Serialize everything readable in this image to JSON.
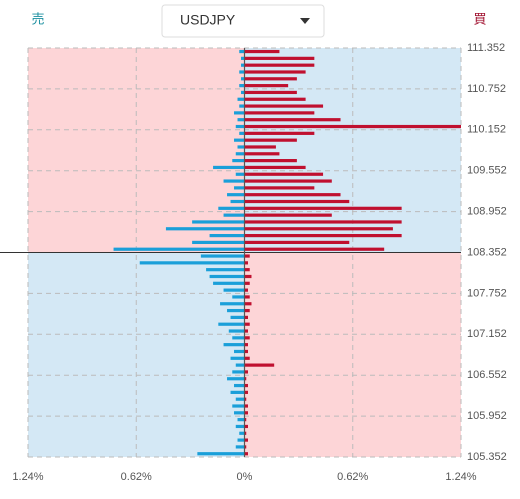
{
  "header": {
    "sell_label": "売",
    "buy_label": "買",
    "symbol": "USDJPY"
  },
  "chart_data": {
    "type": "orderbook",
    "current_price": 108.352,
    "prices": [
      105.4,
      105.5,
      105.6,
      105.7,
      105.8,
      105.9,
      106.0,
      106.1,
      106.2,
      106.3,
      106.4,
      106.5,
      106.6,
      106.7,
      106.8,
      106.9,
      107.0,
      107.1,
      107.2,
      107.3,
      107.4,
      107.5,
      107.6,
      107.7,
      107.8,
      107.9,
      108.0,
      108.1,
      108.2,
      108.3,
      108.4,
      108.5,
      108.6,
      108.7,
      108.8,
      108.9,
      109.0,
      109.1,
      109.2,
      109.3,
      109.4,
      109.5,
      109.6,
      109.7,
      109.8,
      109.9,
      110.0,
      110.1,
      110.2,
      110.3,
      110.4,
      110.5,
      110.6,
      110.7,
      110.8,
      110.9,
      111.0,
      111.1,
      111.2,
      111.3
    ],
    "series": [
      {
        "name": "売",
        "color": "#1a9fd9",
        "side": "left",
        "values": [
          0.27,
          0.05,
          0.04,
          0.03,
          0.05,
          0.04,
          0.06,
          0.07,
          0.05,
          0.08,
          0.06,
          0.1,
          0.07,
          0.05,
          0.08,
          0.06,
          0.12,
          0.07,
          0.09,
          0.15,
          0.08,
          0.1,
          0.14,
          0.07,
          0.12,
          0.18,
          0.2,
          0.22,
          0.6,
          0.25,
          0.75,
          0.3,
          0.2,
          0.45,
          0.3,
          0.12,
          0.15,
          0.08,
          0.1,
          0.06,
          0.12,
          0.05,
          0.18,
          0.07,
          0.05,
          0.04,
          0.06,
          0.03,
          0.05,
          0.04,
          0.06,
          0.03,
          0.04,
          0.02,
          0.03,
          0.02,
          0.03,
          0.02,
          0.02,
          0.03
        ]
      },
      {
        "name": "買",
        "color": "#c0102f",
        "side": "right",
        "values": [
          0.02,
          0.01,
          0.02,
          0.01,
          0.02,
          0.01,
          0.02,
          0.02,
          0.01,
          0.02,
          0.02,
          0.01,
          0.02,
          0.17,
          0.03,
          0.02,
          0.02,
          0.03,
          0.02,
          0.03,
          0.02,
          0.03,
          0.04,
          0.03,
          0.02,
          0.03,
          0.04,
          0.03,
          0.02,
          0.03,
          0.8,
          0.6,
          0.9,
          0.85,
          0.9,
          0.5,
          0.9,
          0.6,
          0.55,
          0.4,
          0.5,
          0.45,
          0.35,
          0.3,
          0.2,
          0.18,
          0.3,
          0.4,
          1.24,
          0.55,
          0.4,
          0.45,
          0.35,
          0.3,
          0.25,
          0.3,
          0.35,
          0.4,
          0.4,
          0.2
        ]
      }
    ],
    "xlim": [
      -1.24,
      1.24
    ],
    "xticks": [
      {
        "value": -1.24,
        "label": "1.24%"
      },
      {
        "value": -0.62,
        "label": "0.62%"
      },
      {
        "value": 0,
        "label": "0%"
      },
      {
        "value": 0.62,
        "label": "0.62%"
      },
      {
        "value": 1.24,
        "label": "1.24%"
      }
    ],
    "ylim": [
      105.352,
      111.352
    ],
    "yticks": [
      105.352,
      105.952,
      106.552,
      107.152,
      107.752,
      108.352,
      108.952,
      109.552,
      110.152,
      110.752,
      111.352
    ],
    "grid": true
  }
}
